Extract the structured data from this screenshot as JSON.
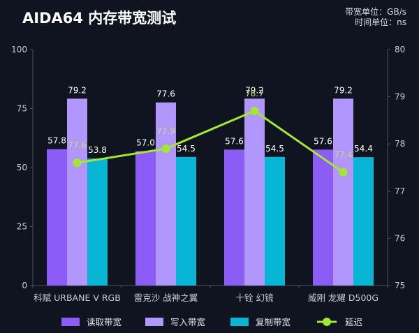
{
  "chart_data": {
    "type": "bar",
    "title": "AIDA64 内存带宽测试",
    "units": [
      "带宽单位：GB/s",
      "时间单位：ns"
    ],
    "categories": [
      "科赋 URBANE V RGB",
      "雷克沙 战神之翼",
      "十铨 幻镜",
      "威刚 龙耀 D500G"
    ],
    "series": [
      {
        "name": "读取带宽",
        "kind": "bar",
        "axis": "left",
        "color": "#8b5cf6",
        "values": [
          57.8,
          57.0,
          57.6,
          57.6
        ],
        "labels": [
          "57.8",
          "57.0",
          "57.6",
          "57.6"
        ]
      },
      {
        "name": "写入带宽",
        "kind": "bar",
        "axis": "left",
        "color": "#b197fc",
        "values": [
          79.2,
          77.6,
          79.2,
          79.2
        ],
        "labels": [
          "79.2",
          "77.6",
          "79.2",
          "79.2"
        ]
      },
      {
        "name": "复制带宽",
        "kind": "bar",
        "axis": "left",
        "color": "#06b6d4",
        "values": [
          53.8,
          54.5,
          54.5,
          54.4
        ],
        "labels": [
          "53.8",
          "54.5",
          "54.5",
          "54.4"
        ]
      },
      {
        "name": "延迟",
        "kind": "line",
        "axis": "right",
        "color": "#a3e635",
        "values": [
          77.6,
          77.9,
          78.7,
          77.4
        ],
        "labels": [
          "77.6",
          "77.9",
          "78.7",
          "77.4"
        ]
      }
    ],
    "y_left": {
      "min": 0,
      "max": 100,
      "ticks": [
        "0",
        "25",
        "50",
        "75",
        "100"
      ],
      "tick_values": [
        0,
        25,
        50,
        75,
        100
      ]
    },
    "y_right": {
      "min": 75,
      "max": 80,
      "ticks": [
        "75",
        "76",
        "77",
        "78",
        "79",
        "80"
      ],
      "tick_values": [
        75,
        76,
        77,
        78,
        79,
        80
      ]
    },
    "legend_position": "bottom",
    "grid": false,
    "label_colors": {
      "bar": "#ffffff",
      "line": "#c5d98a"
    }
  }
}
